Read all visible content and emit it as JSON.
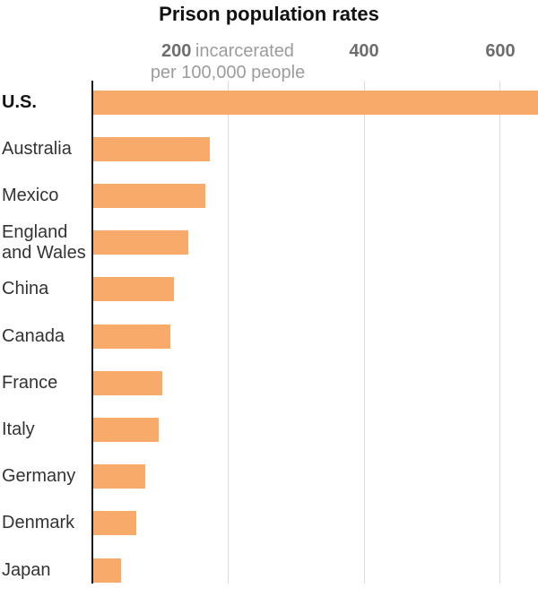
{
  "title": "Prison population rates",
  "axis": {
    "unit_note_line1": "incarcerated",
    "unit_note_line2": "per 100,000 people",
    "ticks": [
      {
        "value": 200,
        "label": "200"
      },
      {
        "value": 400,
        "label": "400"
      },
      {
        "value": 600,
        "label": "600"
      }
    ]
  },
  "chart_data": {
    "type": "bar",
    "orientation": "horizontal",
    "title": "Prison population rates",
    "xlabel": "incarcerated per 100,000 people",
    "ylabel": "",
    "xlim": [
      0,
      660
    ],
    "tick_values": [
      200,
      400,
      600
    ],
    "grid": "vertical-gridlines-on",
    "legend": "none",
    "categories": [
      "U.S.",
      "Australia",
      "Mexico",
      "England and Wales",
      "China",
      "Canada",
      "France",
      "Italy",
      "Germany",
      "Denmark",
      "Japan"
    ],
    "values": [
      655,
      172,
      165,
      140,
      119,
      114,
      101,
      96,
      76,
      63,
      41
    ],
    "highlighted_category": "U.S.",
    "bar_color": "#f8aa6a"
  },
  "colors": {
    "bar": "#f8aa6a",
    "title": "#121212",
    "category_label": "#333333",
    "category_label_emphasis": "#121212",
    "tick_number": "#6e6e6e",
    "tick_note": "#9c9c9c",
    "gridline": "#dcdcdc",
    "axis_line": "#1a1a1a",
    "background": "#ffffff"
  }
}
